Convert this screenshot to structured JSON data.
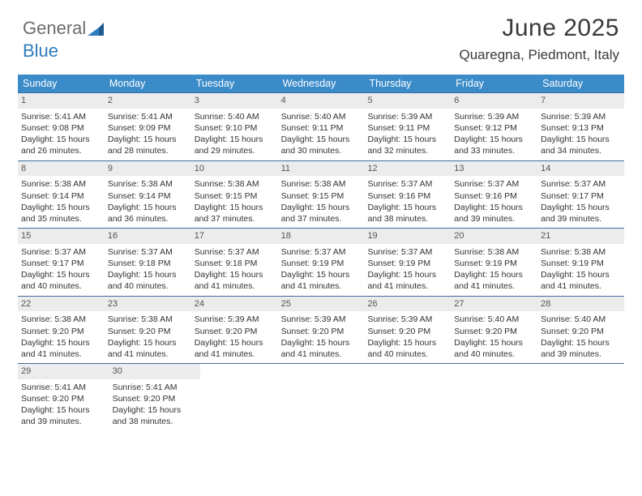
{
  "logo": {
    "text_gray": "General",
    "text_blue": "Blue"
  },
  "title": "June 2025",
  "location": "Quaregna, Piedmont, Italy",
  "colors": {
    "header_bg": "#3b8bc9",
    "header_text": "#ffffff",
    "row_border": "#3b6fa0",
    "daynum_bg": "#ececec",
    "daynum_text": "#555555",
    "body_text": "#333333",
    "logo_gray": "#6b6b6b",
    "logo_blue": "#2f7bbf"
  },
  "weekdays": [
    "Sunday",
    "Monday",
    "Tuesday",
    "Wednesday",
    "Thursday",
    "Friday",
    "Saturday"
  ],
  "weeks": [
    [
      {
        "n": "1",
        "sr": "Sunrise: 5:41 AM",
        "ss": "Sunset: 9:08 PM",
        "dl": "Daylight: 15 hours and 26 minutes."
      },
      {
        "n": "2",
        "sr": "Sunrise: 5:41 AM",
        "ss": "Sunset: 9:09 PM",
        "dl": "Daylight: 15 hours and 28 minutes."
      },
      {
        "n": "3",
        "sr": "Sunrise: 5:40 AM",
        "ss": "Sunset: 9:10 PM",
        "dl": "Daylight: 15 hours and 29 minutes."
      },
      {
        "n": "4",
        "sr": "Sunrise: 5:40 AM",
        "ss": "Sunset: 9:11 PM",
        "dl": "Daylight: 15 hours and 30 minutes."
      },
      {
        "n": "5",
        "sr": "Sunrise: 5:39 AM",
        "ss": "Sunset: 9:11 PM",
        "dl": "Daylight: 15 hours and 32 minutes."
      },
      {
        "n": "6",
        "sr": "Sunrise: 5:39 AM",
        "ss": "Sunset: 9:12 PM",
        "dl": "Daylight: 15 hours and 33 minutes."
      },
      {
        "n": "7",
        "sr": "Sunrise: 5:39 AM",
        "ss": "Sunset: 9:13 PM",
        "dl": "Daylight: 15 hours and 34 minutes."
      }
    ],
    [
      {
        "n": "8",
        "sr": "Sunrise: 5:38 AM",
        "ss": "Sunset: 9:14 PM",
        "dl": "Daylight: 15 hours and 35 minutes."
      },
      {
        "n": "9",
        "sr": "Sunrise: 5:38 AM",
        "ss": "Sunset: 9:14 PM",
        "dl": "Daylight: 15 hours and 36 minutes."
      },
      {
        "n": "10",
        "sr": "Sunrise: 5:38 AM",
        "ss": "Sunset: 9:15 PM",
        "dl": "Daylight: 15 hours and 37 minutes."
      },
      {
        "n": "11",
        "sr": "Sunrise: 5:38 AM",
        "ss": "Sunset: 9:15 PM",
        "dl": "Daylight: 15 hours and 37 minutes."
      },
      {
        "n": "12",
        "sr": "Sunrise: 5:37 AM",
        "ss": "Sunset: 9:16 PM",
        "dl": "Daylight: 15 hours and 38 minutes."
      },
      {
        "n": "13",
        "sr": "Sunrise: 5:37 AM",
        "ss": "Sunset: 9:16 PM",
        "dl": "Daylight: 15 hours and 39 minutes."
      },
      {
        "n": "14",
        "sr": "Sunrise: 5:37 AM",
        "ss": "Sunset: 9:17 PM",
        "dl": "Daylight: 15 hours and 39 minutes."
      }
    ],
    [
      {
        "n": "15",
        "sr": "Sunrise: 5:37 AM",
        "ss": "Sunset: 9:17 PM",
        "dl": "Daylight: 15 hours and 40 minutes."
      },
      {
        "n": "16",
        "sr": "Sunrise: 5:37 AM",
        "ss": "Sunset: 9:18 PM",
        "dl": "Daylight: 15 hours and 40 minutes."
      },
      {
        "n": "17",
        "sr": "Sunrise: 5:37 AM",
        "ss": "Sunset: 9:18 PM",
        "dl": "Daylight: 15 hours and 41 minutes."
      },
      {
        "n": "18",
        "sr": "Sunrise: 5:37 AM",
        "ss": "Sunset: 9:19 PM",
        "dl": "Daylight: 15 hours and 41 minutes."
      },
      {
        "n": "19",
        "sr": "Sunrise: 5:37 AM",
        "ss": "Sunset: 9:19 PM",
        "dl": "Daylight: 15 hours and 41 minutes."
      },
      {
        "n": "20",
        "sr": "Sunrise: 5:38 AM",
        "ss": "Sunset: 9:19 PM",
        "dl": "Daylight: 15 hours and 41 minutes."
      },
      {
        "n": "21",
        "sr": "Sunrise: 5:38 AM",
        "ss": "Sunset: 9:19 PM",
        "dl": "Daylight: 15 hours and 41 minutes."
      }
    ],
    [
      {
        "n": "22",
        "sr": "Sunrise: 5:38 AM",
        "ss": "Sunset: 9:20 PM",
        "dl": "Daylight: 15 hours and 41 minutes."
      },
      {
        "n": "23",
        "sr": "Sunrise: 5:38 AM",
        "ss": "Sunset: 9:20 PM",
        "dl": "Daylight: 15 hours and 41 minutes."
      },
      {
        "n": "24",
        "sr": "Sunrise: 5:39 AM",
        "ss": "Sunset: 9:20 PM",
        "dl": "Daylight: 15 hours and 41 minutes."
      },
      {
        "n": "25",
        "sr": "Sunrise: 5:39 AM",
        "ss": "Sunset: 9:20 PM",
        "dl": "Daylight: 15 hours and 41 minutes."
      },
      {
        "n": "26",
        "sr": "Sunrise: 5:39 AM",
        "ss": "Sunset: 9:20 PM",
        "dl": "Daylight: 15 hours and 40 minutes."
      },
      {
        "n": "27",
        "sr": "Sunrise: 5:40 AM",
        "ss": "Sunset: 9:20 PM",
        "dl": "Daylight: 15 hours and 40 minutes."
      },
      {
        "n": "28",
        "sr": "Sunrise: 5:40 AM",
        "ss": "Sunset: 9:20 PM",
        "dl": "Daylight: 15 hours and 39 minutes."
      }
    ],
    [
      {
        "n": "29",
        "sr": "Sunrise: 5:41 AM",
        "ss": "Sunset: 9:20 PM",
        "dl": "Daylight: 15 hours and 39 minutes."
      },
      {
        "n": "30",
        "sr": "Sunrise: 5:41 AM",
        "ss": "Sunset: 9:20 PM",
        "dl": "Daylight: 15 hours and 38 minutes."
      },
      null,
      null,
      null,
      null,
      null
    ]
  ]
}
